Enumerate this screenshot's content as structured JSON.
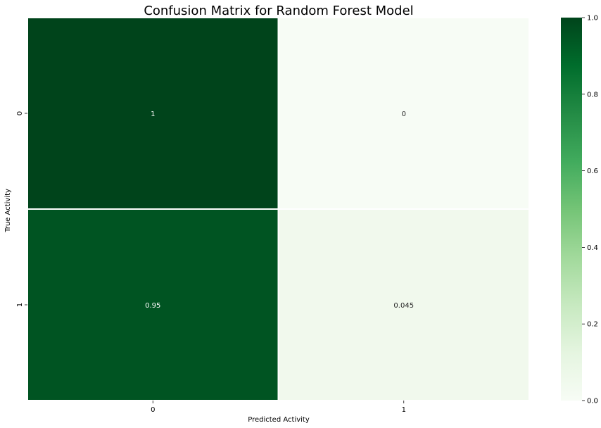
{
  "chart_data": {
    "type": "heatmap",
    "title": "Confusion Matrix for Random Forest Model",
    "xlabel": "Predicted Activity",
    "ylabel": "True Activity",
    "x_categories": [
      "0",
      "1"
    ],
    "y_categories": [
      "0",
      "1"
    ],
    "values": [
      [
        1,
        0
      ],
      [
        0.95,
        0.045
      ]
    ],
    "cell_labels": [
      [
        "1",
        "0"
      ],
      [
        "0.95",
        "0.045"
      ]
    ],
    "colormap": "Greens",
    "vmin": 0,
    "vmax": 1,
    "colorbar_ticks": [
      "0.0",
      "0.2",
      "0.4",
      "0.6",
      "0.8",
      "1.0"
    ],
    "grid_line_color": "#ffffff"
  }
}
